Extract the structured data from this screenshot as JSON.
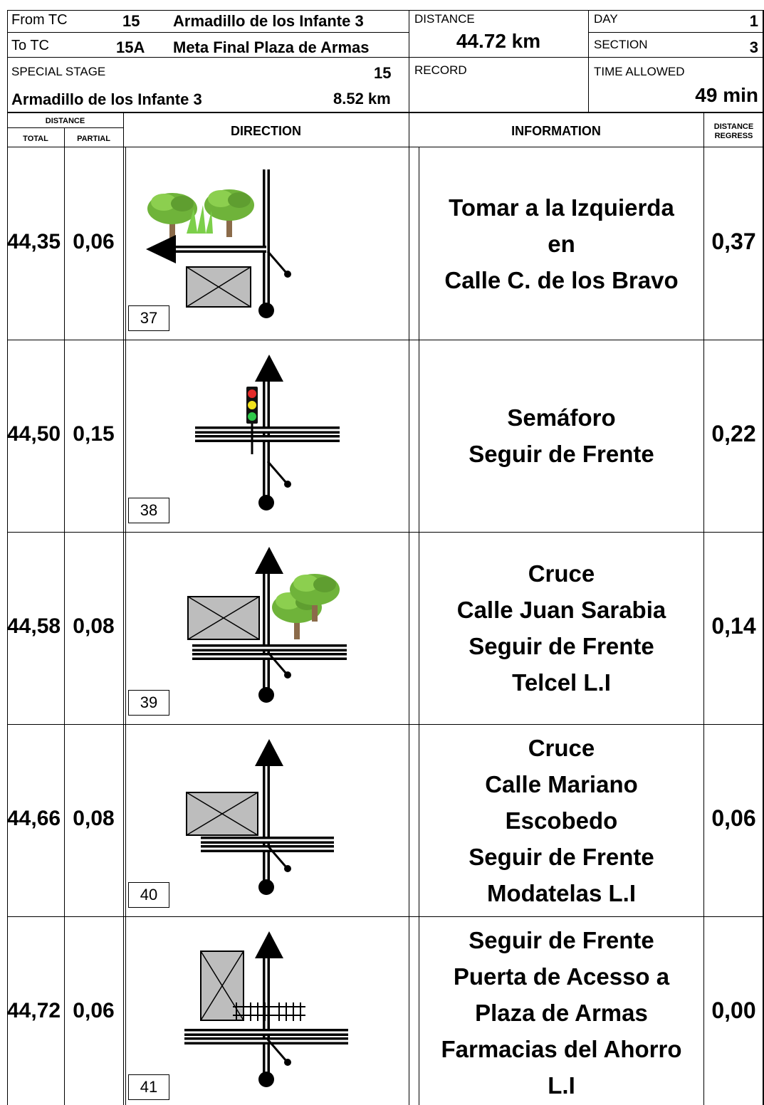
{
  "header": {
    "from_tc_label": "From TC",
    "from_tc_number": "15",
    "from_tc_name": "Armadillo de los Infante 3",
    "to_tc_label": "To TC",
    "to_tc_number": "15A",
    "to_tc_name": "Meta Final Plaza de Armas",
    "distance_label": "DISTANCE",
    "distance_value": "44.72 km",
    "day_label": "DAY",
    "day_value": "1",
    "section_label": "SECTION",
    "section_value": "3",
    "special_stage_label": "SPECIAL STAGE",
    "special_stage_number": "15",
    "stage_name": "Armadillo de los Infante 3",
    "stage_length": "8.52 km",
    "record_label": "RECORD",
    "time_allowed_label": "TIME ALLOWED",
    "time_allowed_value": "49 min"
  },
  "columns": {
    "distance": "DISTANCE",
    "total": "TOTAL",
    "partial": "PARTIAL",
    "direction": "DIRECTION",
    "information": "INFORMATION",
    "distance_regress": [
      "DISTANCE",
      "REGRESS"
    ]
  },
  "rows": [
    {
      "total": "44,35",
      "partial": "0,06",
      "number": "37",
      "info": [
        "Tomar a la Izquierda",
        "en",
        "Calle C. de los Bravo"
      ],
      "regress": "0,37"
    },
    {
      "total": "44,50",
      "partial": "0,15",
      "number": "38",
      "info": [
        "Semáforo",
        "Seguir de Frente"
      ],
      "regress": "0,22"
    },
    {
      "total": "44,58",
      "partial": "0,08",
      "number": "39",
      "info": [
        "Cruce",
        "Calle Juan Sarabia",
        "Seguir de Frente",
        "Telcel L.I"
      ],
      "regress": "0,14"
    },
    {
      "total": "44,66",
      "partial": "0,08",
      "number": "40",
      "info": [
        "Cruce",
        "Calle Mariano",
        "Escobedo",
        "Seguir de Frente",
        "Modatelas L.I"
      ],
      "regress": "0,06"
    },
    {
      "total": "44,72",
      "partial": "0,06",
      "number": "41",
      "info": [
        "Seguir de Frente",
        "Puerta de Acesso a",
        "Plaza de Armas",
        "Farmacias del Ahorro",
        "L.I"
      ],
      "regress": "0,00"
    }
  ]
}
